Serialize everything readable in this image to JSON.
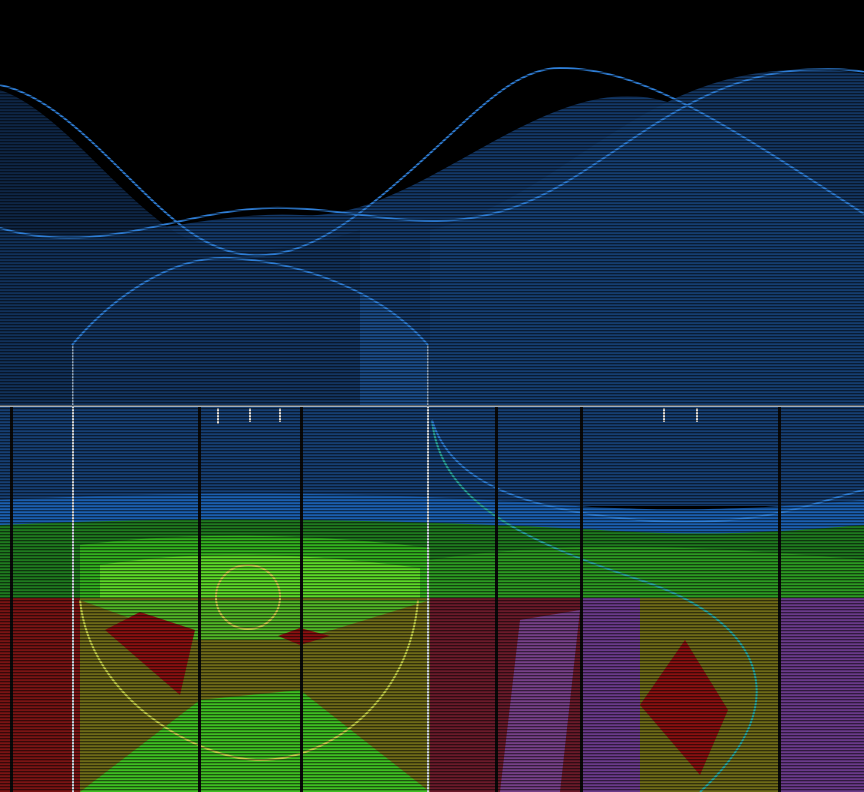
{
  "scene": {
    "description_free": true,
    "colors": {
      "background": "#000000",
      "sky_blue": "#1c4a86",
      "wave_line": "#2f7fd8",
      "horizon_line": "#c8d2dc",
      "band_blue": "#1b5fb0",
      "band_green_dark": "#1f7a1f",
      "band_green": "#33b21f",
      "band_green_light": "#66e22a",
      "red_region": "#7a1414",
      "red_diamond": "#8a1010",
      "olive": "#6e6a18",
      "purple": "#6a3a8a",
      "yellow_outline": "#c8d24a",
      "cyan_curve": "#2aa8a0",
      "divider": "#0a0a0a",
      "tick": "#e0e0e0"
    },
    "scanlines": true
  }
}
